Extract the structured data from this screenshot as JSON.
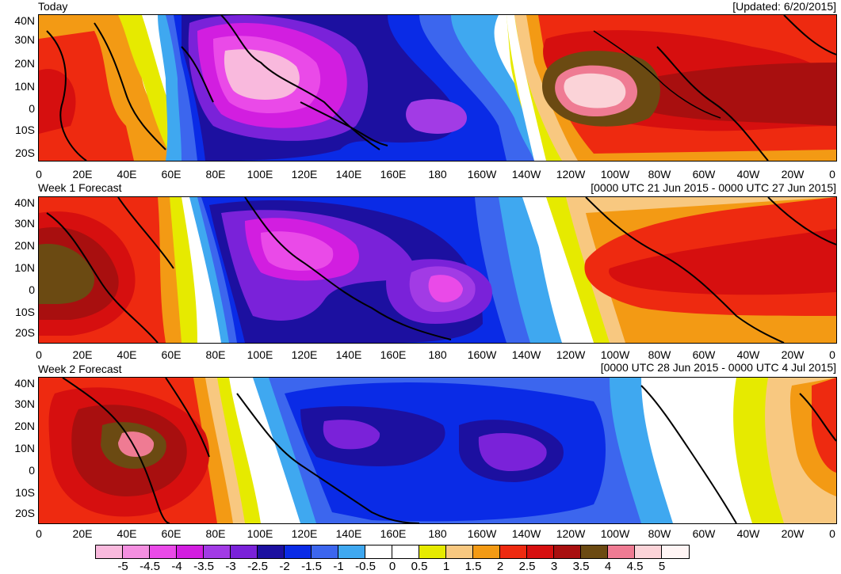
{
  "panels": [
    {
      "title": "Today",
      "range": "[Updated: 6/20/2015]"
    },
    {
      "title": "Week 1 Forecast",
      "range": "[0000 UTC 21 Jun 2015 - 0000 UTC 27 Jun 2015]"
    },
    {
      "title": "Week 2 Forecast",
      "range": "[0000 UTC 28 Jun 2015 - 0000 UTC 4 Jul 2015]"
    }
  ],
  "axes": {
    "lat_labels": [
      "40N",
      "30N",
      "20N",
      "10N",
      "0",
      "10S",
      "20S"
    ],
    "lon_labels": [
      "0",
      "20E",
      "40E",
      "60E",
      "80E",
      "100E",
      "120E",
      "140E",
      "160E",
      "180",
      "160W",
      "140W",
      "120W",
      "100W",
      "80W",
      "60W",
      "40W",
      "20W",
      "0"
    ]
  },
  "legend": {
    "labels": [
      "-5",
      "-4.5",
      "-4",
      "-3.5",
      "-3",
      "-2.5",
      "-2",
      "-1.5",
      "-1",
      "-0.5",
      "0",
      "0.5",
      "1",
      "1.5",
      "2",
      "2.5",
      "3",
      "3.5",
      "4",
      "4.5",
      "5"
    ],
    "colors": [
      "#f9b9dd",
      "#f48fe0",
      "#ea4ae8",
      "#d21ee0",
      "#a23be5",
      "#7a22d9",
      "#1c10a0",
      "#0a2be6",
      "#3c66ee",
      "#3fa8f0",
      "#ffffff",
      "#ffffff",
      "#e6ea00",
      "#f8c880",
      "#f39a14",
      "#ee2a10",
      "#d60f0f",
      "#a80f0f",
      "#6b4a12",
      "#ef7b93",
      "#fbd3d8",
      "#fff5f5"
    ]
  },
  "colors": {
    "neutral": "#ffffff",
    "coast": "#000000"
  }
}
